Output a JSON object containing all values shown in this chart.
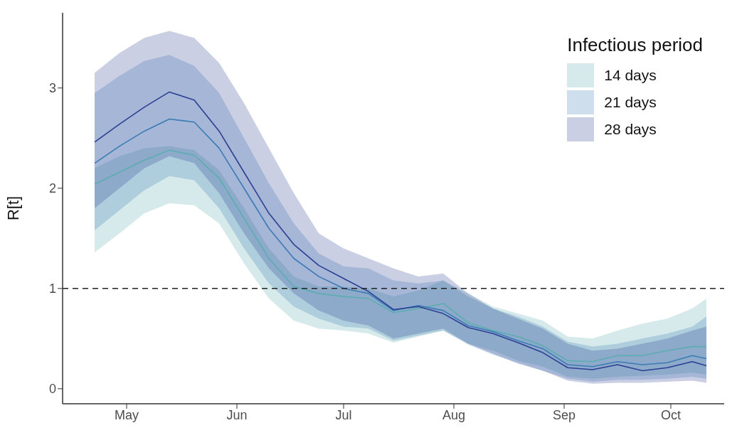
{
  "chart_data": {
    "type": "line",
    "ylabel": "R[t]",
    "legend_title": "Infectious period",
    "legend": "top right",
    "grid": false,
    "marker": "none",
    "line_style": "solid",
    "x": [
      "--04-22",
      "--04-29",
      "--05-06",
      "--05-13",
      "--05-20",
      "--05-27",
      "--06-03",
      "--06-10",
      "--06-17",
      "--06-24",
      "--07-01",
      "--07-08",
      "--07-15",
      "--07-22",
      "--07-29",
      "--08-05",
      "--08-12",
      "--08-19",
      "--08-26",
      "--09-02",
      "--09-09",
      "--09-16",
      "--09-23",
      "--09-30",
      "--10-07",
      "--10-11"
    ],
    "xlim": [
      "--04-13",
      "--10-16"
    ],
    "xticks": [
      {
        "value": "--05-01",
        "label": "May"
      },
      {
        "value": "--06-01",
        "label": "Jun"
      },
      {
        "value": "--07-01",
        "label": "Jul"
      },
      {
        "value": "--08-01",
        "label": "Aug"
      },
      {
        "value": "--09-01",
        "label": "Sep"
      },
      {
        "value": "--10-01",
        "label": "Oct"
      }
    ],
    "ylim": [
      -0.15,
      3.75
    ],
    "yticks": [
      0,
      1,
      2,
      3
    ],
    "ref_lines": [
      {
        "axis": "y",
        "value": 1,
        "color": "#222222",
        "line_style": "dashed"
      }
    ],
    "series": [
      {
        "name": "14 days",
        "color": "#5aadb0",
        "values": [
          2.04,
          2.16,
          2.28,
          2.38,
          2.33,
          2.1,
          1.7,
          1.3,
          1.02,
          0.95,
          0.92,
          0.9,
          0.76,
          0.8,
          0.85,
          0.66,
          0.58,
          0.52,
          0.43,
          0.28,
          0.27,
          0.33,
          0.33,
          0.38,
          0.42,
          0.42
        ],
        "lower": [
          1.36,
          1.55,
          1.75,
          1.85,
          1.83,
          1.65,
          1.25,
          0.9,
          0.68,
          0.6,
          0.58,
          0.55,
          0.46,
          0.52,
          0.58,
          0.45,
          0.38,
          0.28,
          0.22,
          0.12,
          0.1,
          0.12,
          0.13,
          0.14,
          0.16,
          0.14
        ],
        "upper": [
          2.2,
          2.32,
          2.4,
          2.42,
          2.38,
          2.18,
          1.8,
          1.4,
          1.12,
          1.02,
          1.02,
          1.0,
          0.92,
          0.98,
          1.08,
          0.95,
          0.82,
          0.75,
          0.68,
          0.52,
          0.5,
          0.58,
          0.65,
          0.7,
          0.8,
          0.9
        ]
      },
      {
        "name": "21 days",
        "color": "#3b7bb5",
        "values": [
          2.25,
          2.42,
          2.57,
          2.69,
          2.66,
          2.4,
          2.0,
          1.6,
          1.3,
          1.12,
          1.0,
          0.95,
          0.78,
          0.83,
          0.78,
          0.63,
          0.57,
          0.48,
          0.4,
          0.24,
          0.22,
          0.27,
          0.24,
          0.26,
          0.33,
          0.3
        ],
        "lower": [
          1.58,
          1.78,
          1.98,
          2.12,
          2.08,
          1.8,
          1.4,
          1.05,
          0.82,
          0.7,
          0.62,
          0.6,
          0.48,
          0.53,
          0.58,
          0.44,
          0.34,
          0.26,
          0.18,
          0.1,
          0.07,
          0.09,
          0.09,
          0.1,
          0.12,
          0.1
        ],
        "upper": [
          2.95,
          3.12,
          3.27,
          3.33,
          3.22,
          2.95,
          2.5,
          2.05,
          1.65,
          1.35,
          1.22,
          1.2,
          1.08,
          1.05,
          1.08,
          0.92,
          0.8,
          0.72,
          0.62,
          0.47,
          0.42,
          0.45,
          0.5,
          0.55,
          0.62,
          0.72
        ]
      },
      {
        "name": "28 days",
        "color": "#2b3f93",
        "values": [
          2.46,
          2.64,
          2.81,
          2.96,
          2.88,
          2.57,
          2.16,
          1.75,
          1.44,
          1.23,
          1.1,
          0.97,
          0.79,
          0.82,
          0.75,
          0.61,
          0.55,
          0.46,
          0.36,
          0.21,
          0.19,
          0.24,
          0.18,
          0.21,
          0.27,
          0.23
        ],
        "lower": [
          1.8,
          2.0,
          2.2,
          2.32,
          2.25,
          1.95,
          1.55,
          1.2,
          0.95,
          0.78,
          0.68,
          0.63,
          0.5,
          0.55,
          0.6,
          0.45,
          0.35,
          0.25,
          0.18,
          0.08,
          0.05,
          0.06,
          0.06,
          0.07,
          0.08,
          0.06
        ],
        "upper": [
          3.15,
          3.35,
          3.5,
          3.57,
          3.5,
          3.25,
          2.85,
          2.4,
          1.95,
          1.55,
          1.4,
          1.3,
          1.2,
          1.12,
          1.15,
          0.95,
          0.8,
          0.7,
          0.6,
          0.45,
          0.38,
          0.4,
          0.45,
          0.5,
          0.58,
          0.62
        ]
      }
    ]
  }
}
